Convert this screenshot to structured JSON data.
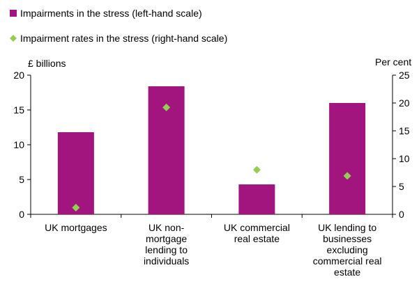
{
  "chart_data": {
    "type": "bar",
    "categories": [
      [
        "UK mortgages"
      ],
      [
        "UK non-",
        "mortgage",
        "lending to",
        "individuals"
      ],
      [
        "UK commercial",
        "real estate"
      ],
      [
        "UK lending to",
        "businesses",
        "excluding",
        "commercial real",
        "estate"
      ]
    ],
    "series": [
      {
        "name": "Impairments in the stress (left-hand scale)",
        "kind": "bar",
        "axis": "left",
        "color": "#a3157e",
        "values": [
          11.8,
          18.4,
          4.3,
          16.0
        ]
      },
      {
        "name": "Impairment rates in the stress (right-hand scale)",
        "kind": "marker",
        "axis": "right",
        "color": "#8fd14f",
        "values": [
          1.2,
          19.2,
          8.0,
          6.9
        ]
      }
    ],
    "left_axis": {
      "label": "£ billions",
      "ylim": [
        0,
        20
      ],
      "ticks": [
        "0",
        "5",
        "10",
        "15",
        "20"
      ]
    },
    "right_axis": {
      "label": "Per cent",
      "ylim": [
        0,
        25
      ],
      "ticks": [
        "0",
        "5",
        "10",
        "15",
        "20",
        "25"
      ]
    },
    "grid": false,
    "legend_position": "top-left"
  }
}
